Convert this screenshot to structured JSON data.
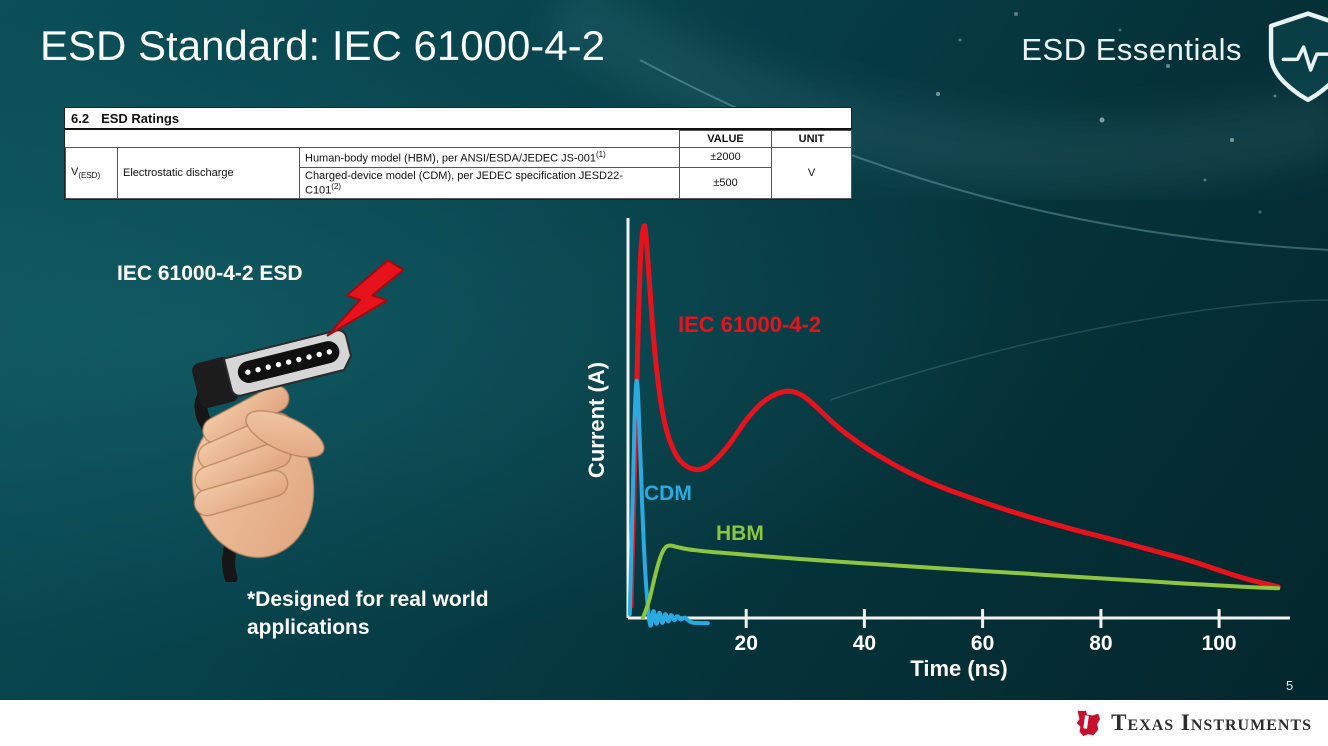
{
  "slide": {
    "title": "ESD Standard: IEC 61000-4-2",
    "brand": "ESD Essentials",
    "slide_number": "5",
    "footer_brand": "Texas Instruments"
  },
  "colors": {
    "background_teal": "#07434c",
    "ti_red": "#c8102e",
    "iec_red": "#e8121c",
    "cdm_blue": "#29abe2",
    "hbm_green": "#8cc63f"
  },
  "ratings_table": {
    "section_number": "6.2",
    "section_title": "ESD Ratings",
    "col_value": "VALUE",
    "col_unit": "UNIT",
    "symbol_base": "V",
    "symbol_sub": "(ESD)",
    "parameter": "Electrostatic discharge",
    "hbm_desc": "Human-body model (HBM), per ANSI/ESDA/JEDEC JS-001",
    "hbm_sup": "(1)",
    "hbm_value": "±2000",
    "cdm_desc_line1": "Charged-device model (CDM), per JEDEC specification JESD22-",
    "cdm_desc_line2": "C101",
    "cdm_sup": "(2)",
    "cdm_value": "±500",
    "unit": "V"
  },
  "left_panel": {
    "caption": "IEC 61000-4-2 ESD",
    "note": "*Designed for real world applications"
  },
  "chart_data": {
    "type": "line",
    "title": "",
    "xlabel": "Time (ns)",
    "ylabel": "Current (A)",
    "xlim": [
      0,
      112
    ],
    "ylim": [
      0,
      1.02
    ],
    "xticks": [
      20,
      40,
      60,
      80,
      100
    ],
    "grid": false,
    "legend_position": "inline-labels",
    "series": [
      {
        "name": "IEC 61000-4-2",
        "color": "#e8121c",
        "width": 5,
        "x": [
          0.5,
          1.2,
          2.0,
          2.6,
          3.0,
          3.6,
          4.6,
          6,
          8,
          10,
          12,
          14,
          17,
          20,
          23,
          25.5,
          27.5,
          29.5,
          32,
          35,
          39,
          43,
          48,
          53,
          59,
          65,
          71,
          77,
          83,
          89,
          95,
          100,
          105,
          110
        ],
        "y": [
          0.03,
          0.42,
          0.92,
          1.01,
          1.0,
          0.86,
          0.66,
          0.5,
          0.415,
          0.385,
          0.378,
          0.392,
          0.44,
          0.51,
          0.558,
          0.578,
          0.583,
          0.572,
          0.54,
          0.495,
          0.448,
          0.41,
          0.368,
          0.335,
          0.302,
          0.272,
          0.245,
          0.22,
          0.197,
          0.172,
          0.148,
          0.122,
          0.098,
          0.08
        ]
      },
      {
        "name": "CDM",
        "color": "#29abe2",
        "width": 4,
        "x": [
          0.3,
          0.9,
          1.3,
          1.6,
          2.0,
          2.6,
          3.2,
          3.8,
          4.3,
          4.8,
          5.3,
          5.8,
          6.3,
          6.8,
          7.3,
          7.8,
          8.3,
          8.9,
          9.6,
          10.5,
          12,
          13.5
        ],
        "y": [
          0.01,
          0.4,
          0.6,
          0.615,
          0.46,
          0.2,
          0.05,
          -0.04,
          0.035,
          -0.03,
          0.027,
          -0.024,
          0.02,
          -0.017,
          0.014,
          -0.011,
          0.009,
          -0.007,
          0.004,
          -0.012,
          -0.013,
          -0.013
        ]
      },
      {
        "name": "HBM",
        "color": "#8cc63f",
        "width": 4,
        "x": [
          2.5,
          3.5,
          4.5,
          5.5,
          6.3,
          7.0,
          8,
          10,
          13,
          16,
          20,
          25,
          30,
          36,
          42,
          50,
          58,
          66,
          74,
          82,
          90,
          98,
          104,
          110
        ],
        "y": [
          0.0,
          0.035,
          0.105,
          0.16,
          0.182,
          0.187,
          0.183,
          0.176,
          0.171,
          0.167,
          0.162,
          0.156,
          0.15,
          0.144,
          0.138,
          0.13,
          0.122,
          0.115,
          0.107,
          0.1,
          0.092,
          0.085,
          0.08,
          0.076
        ]
      }
    ]
  }
}
